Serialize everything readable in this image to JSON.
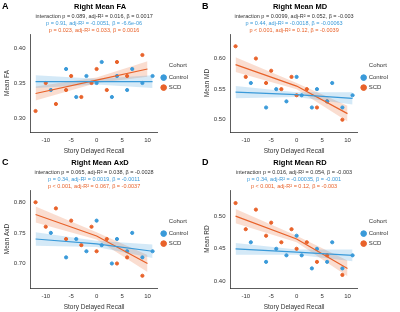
{
  "chart_data": [
    {
      "type": "scatter",
      "label": "A",
      "title": "Right Mean FA",
      "annotations": [
        {
          "text": "interaction p = 0.089, adj-R² = 0.016, β = 0.0017",
          "color": "#333333"
        },
        {
          "text": "p = 0.91, adj-R² = -0.0051, β = -6.6e-06",
          "color": "#3a9ad9"
        },
        {
          "text": "p = 0.023, adj-R² = 0.033, β = 0.0016",
          "color": "#e8622a"
        }
      ],
      "x_label": "Story Delayed Recall",
      "y_label": "Mean FA",
      "xlim": [
        -13,
        12
      ],
      "xticks": [
        -10,
        -5,
        0,
        5,
        10
      ],
      "ylim": [
        0.28,
        0.42
      ],
      "yticks": [
        {
          "value": 0.3,
          "label": "0.30"
        },
        {
          "value": 0.35,
          "label": "0.35"
        },
        {
          "value": 0.4,
          "label": "0.40"
        }
      ],
      "grid": false,
      "legend": "right",
      "legend_title": "Cohort",
      "series": [
        {
          "name": "Control",
          "color": "#3a9ad9",
          "x": [
            -9,
            -6,
            -4,
            -2,
            0,
            1,
            3,
            4,
            6,
            7,
            9,
            11
          ],
          "values": [
            0.34,
            0.37,
            0.33,
            0.36,
            0.35,
            0.38,
            0.33,
            0.36,
            0.34,
            0.37,
            0.35,
            0.36
          ],
          "fit": {
            "x": [
              -12,
              0,
              11
            ],
            "values": [
              0.352,
              0.352,
              0.352
            ],
            "lower": [
              0.343,
              0.348,
              0.343
            ],
            "upper": [
              0.361,
              0.356,
              0.361
            ]
          }
        },
        {
          "name": "SCD",
          "color": "#e8622a",
          "x": [
            -12,
            -10,
            -8,
            -6,
            -5,
            -3,
            -1,
            0,
            2,
            4,
            6,
            9
          ],
          "values": [
            0.31,
            0.35,
            0.32,
            0.34,
            0.36,
            0.33,
            0.35,
            0.37,
            0.34,
            0.38,
            0.36,
            0.39
          ],
          "fit": {
            "x": [
              -12,
              0,
              10
            ],
            "values": [
              0.335,
              0.354,
              0.37
            ],
            "lower": [
              0.325,
              0.35,
              0.359
            ],
            "upper": [
              0.345,
              0.358,
              0.381
            ]
          }
        }
      ]
    },
    {
      "type": "scatter",
      "label": "B",
      "title": "Right Mean MD",
      "annotations": [
        {
          "text": "interaction p = 0.0099, adj-R² = 0.052, β = -0.003",
          "color": "#333333"
        },
        {
          "text": "p = 0.44, adj-R² = -0.0018, β = -0.00063",
          "color": "#3a9ad9"
        },
        {
          "text": "p < 0.001, adj-R² = 0.12, β = -0.0039",
          "color": "#e8622a"
        }
      ],
      "x_label": "Story Delayed Recall",
      "y_label": "Mean MD",
      "xlim": [
        -13,
        12
      ],
      "xticks": [
        -10,
        -5,
        0,
        5,
        10
      ],
      "ylim": [
        0.48,
        0.64
      ],
      "yticks": [
        {
          "value": 0.5,
          "label": "0.50"
        },
        {
          "value": 0.55,
          "label": "0.55"
        },
        {
          "value": 0.6,
          "label": "0.60"
        }
      ],
      "grid": false,
      "legend": "right",
      "legend_title": "Cohort",
      "series": [
        {
          "name": "Control",
          "color": "#3a9ad9",
          "x": [
            -9,
            -6,
            -4,
            -2,
            0,
            1,
            3,
            4,
            6,
            7,
            9,
            11
          ],
          "values": [
            0.56,
            0.52,
            0.55,
            0.53,
            0.57,
            0.54,
            0.52,
            0.55,
            0.53,
            0.56,
            0.52,
            0.54
          ],
          "fit": {
            "x": [
              -12,
              0,
              11
            ],
            "values": [
              0.545,
              0.541,
              0.535
            ],
            "lower": [
              0.535,
              0.537,
              0.525
            ],
            "upper": [
              0.555,
              0.545,
              0.545
            ]
          }
        },
        {
          "name": "SCD",
          "color": "#e8622a",
          "x": [
            -12,
            -10,
            -8,
            -6,
            -5,
            -3,
            -1,
            0,
            2,
            4,
            6,
            9
          ],
          "values": [
            0.62,
            0.57,
            0.6,
            0.56,
            0.58,
            0.55,
            0.57,
            0.54,
            0.55,
            0.52,
            0.53,
            0.5
          ],
          "fit": {
            "x": [
              -12,
              0,
              10
            ],
            "values": [
              0.59,
              0.555,
              0.51
            ],
            "lower": [
              0.578,
              0.55,
              0.497
            ],
            "upper": [
              0.602,
              0.56,
              0.523
            ]
          }
        }
      ]
    },
    {
      "type": "scatter",
      "label": "C",
      "title": "Right Mean AxD",
      "annotations": [
        {
          "text": "interaction p = 0.065, adj-R² = 0.038, β = -0.0028",
          "color": "#333333"
        },
        {
          "text": "p = 0.34, adj-R² = 0.0019, β = -0.0011",
          "color": "#3a9ad9"
        },
        {
          "text": "p < 0.001, adj-R² = 0.067, β = -0.0037",
          "color": "#e8622a"
        }
      ],
      "x_label": "Story Delayed Recall",
      "y_label": "Mean AxD",
      "xlim": [
        -13,
        12
      ],
      "xticks": [
        -10,
        -5,
        0,
        5,
        10
      ],
      "ylim": [
        0.66,
        0.82
      ],
      "yticks": [
        {
          "value": 0.7,
          "label": "0.70"
        },
        {
          "value": 0.75,
          "label": "0.75"
        },
        {
          "value": 0.8,
          "label": "0.80"
        }
      ],
      "grid": false,
      "legend": "right",
      "legend_title": "Cohort",
      "series": [
        {
          "name": "Control",
          "color": "#3a9ad9",
          "x": [
            -9,
            -6,
            -4,
            -2,
            0,
            1,
            3,
            4,
            6,
            7,
            9,
            11
          ],
          "values": [
            0.75,
            0.71,
            0.74,
            0.72,
            0.77,
            0.73,
            0.7,
            0.74,
            0.72,
            0.75,
            0.71,
            0.72
          ],
          "fit": {
            "x": [
              -12,
              0,
              11
            ],
            "values": [
              0.74,
              0.732,
              0.72
            ],
            "lower": [
              0.729,
              0.727,
              0.709
            ],
            "upper": [
              0.751,
              0.737,
              0.731
            ]
          }
        },
        {
          "name": "SCD",
          "color": "#e8622a",
          "x": [
            -12,
            -10,
            -8,
            -6,
            -5,
            -3,
            -1,
            0,
            2,
            4,
            6,
            9
          ],
          "values": [
            0.8,
            0.76,
            0.79,
            0.74,
            0.77,
            0.73,
            0.76,
            0.72,
            0.74,
            0.7,
            0.71,
            0.68
          ],
          "fit": {
            "x": [
              -12,
              0,
              10
            ],
            "values": [
              0.78,
              0.745,
              0.7
            ],
            "lower": [
              0.767,
              0.739,
              0.686
            ],
            "upper": [
              0.793,
              0.751,
              0.714
            ]
          }
        }
      ]
    },
    {
      "type": "scatter",
      "label": "D",
      "title": "Right Mean RD",
      "annotations": [
        {
          "text": "interaction p = 0.016, adj-R² = 0.054, β = -0.003",
          "color": "#333333"
        },
        {
          "text": "p = 0.34, adj-R² = -0.00035, β = -0.001",
          "color": "#3a9ad9"
        },
        {
          "text": "p < 0.001, adj-R² = 0.12, β = -0.003",
          "color": "#e8622a"
        }
      ],
      "x_label": "Story Delayed Recall",
      "y_label": "Mean RD",
      "xlim": [
        -13,
        12
      ],
      "xticks": [
        -10,
        -5,
        0,
        5,
        10
      ],
      "ylim": [
        0.39,
        0.54
      ],
      "yticks": [
        {
          "value": 0.4,
          "label": "0.40"
        },
        {
          "value": 0.45,
          "label": "0.45"
        },
        {
          "value": 0.5,
          "label": "0.50"
        }
      ],
      "grid": false,
      "legend": "right",
      "legend_title": "Cohort",
      "series": [
        {
          "name": "Control",
          "color": "#3a9ad9",
          "x": [
            -9,
            -6,
            -4,
            -2,
            0,
            1,
            3,
            4,
            6,
            7,
            9,
            11
          ],
          "values": [
            0.46,
            0.43,
            0.45,
            0.44,
            0.47,
            0.44,
            0.42,
            0.45,
            0.43,
            0.46,
            0.42,
            0.44
          ],
          "fit": {
            "x": [
              -12,
              0,
              11
            ],
            "values": [
              0.45,
              0.445,
              0.44
            ],
            "lower": [
              0.441,
              0.441,
              0.431
            ],
            "upper": [
              0.459,
              0.449,
              0.449
            ]
          }
        },
        {
          "name": "SCD",
          "color": "#e8622a",
          "x": [
            -12,
            -10,
            -8,
            -6,
            -5,
            -3,
            -1,
            0,
            2,
            4,
            6,
            9
          ],
          "values": [
            0.52,
            0.48,
            0.51,
            0.47,
            0.49,
            0.46,
            0.48,
            0.45,
            0.46,
            0.43,
            0.44,
            0.41
          ],
          "fit": {
            "x": [
              -12,
              0,
              10
            ],
            "values": [
              0.5,
              0.465,
              0.42
            ],
            "lower": [
              0.489,
              0.46,
              0.408
            ],
            "upper": [
              0.511,
              0.47,
              0.432
            ]
          }
        }
      ]
    }
  ]
}
